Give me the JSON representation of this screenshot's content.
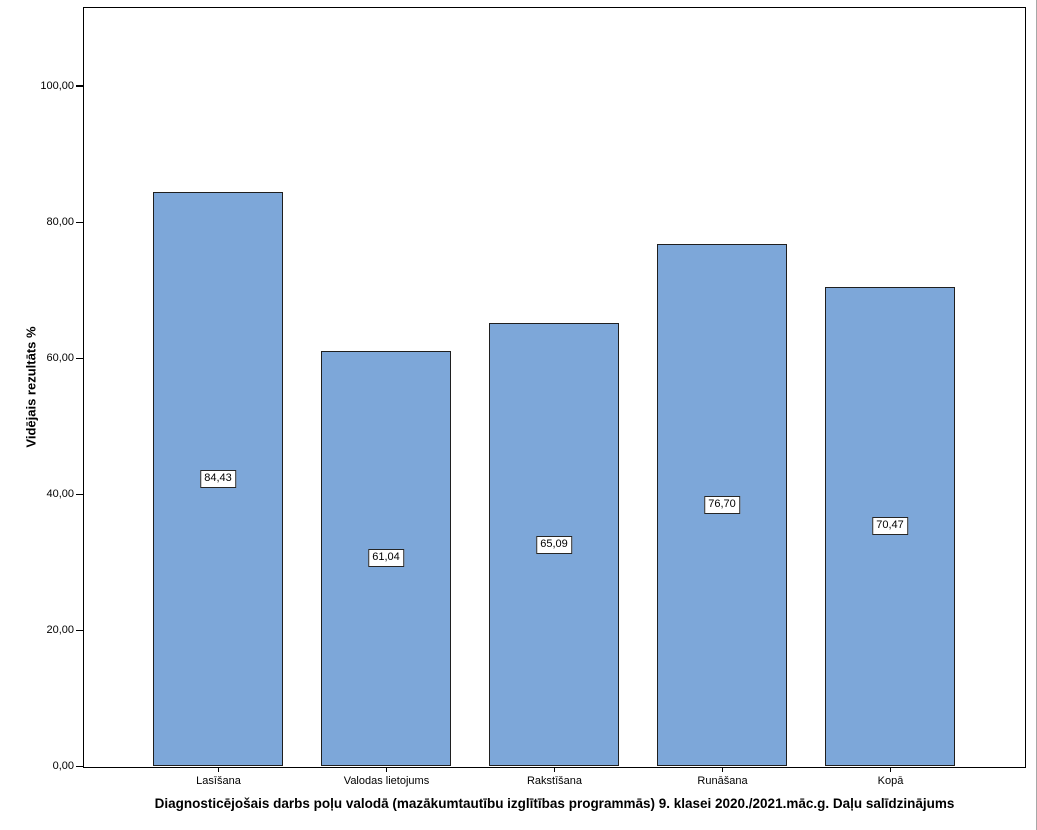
{
  "chart_data": {
    "type": "bar",
    "title": "",
    "categories": [
      "Lasīšana",
      "Valodas lietojums",
      "Rakstīšana",
      "Runāšana",
      "Kopā"
    ],
    "values": [
      84.43,
      61.04,
      65.09,
      76.7,
      70.47
    ],
    "value_labels": [
      "84,43",
      "61,04",
      "65,09",
      "76,70",
      "70,47"
    ],
    "xlabel": "Diagnosticējošais darbs poļu valodā (mazākumtautību izglītības programmās) 9. klasei 2020./2021.māc.g. Daļu salīdzinājums",
    "ylabel": "Vidējais rezultāts %",
    "ylim": [
      0,
      111.4
    ],
    "yticks": [
      {
        "value": 0,
        "label": "0,00"
      },
      {
        "value": 20,
        "label": "20,00"
      },
      {
        "value": 40,
        "label": "40,00"
      },
      {
        "value": 60,
        "label": "60,00"
      },
      {
        "value": 80,
        "label": "80,00"
      },
      {
        "value": 100,
        "label": "100,00"
      }
    ],
    "grid": false,
    "legend": null,
    "colors": {
      "bar_fill": "#7DA7D9",
      "bar_border": "#1F1F1F",
      "frame_border": "#000000",
      "value_box_bg": "#FFFFFF",
      "value_box_border": "#262626",
      "text": "#000000"
    }
  }
}
